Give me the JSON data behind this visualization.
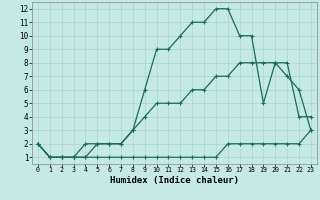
{
  "xlabel": "Humidex (Indice chaleur)",
  "xlim": [
    -0.5,
    23.5
  ],
  "ylim": [
    0.5,
    12.5
  ],
  "xticks": [
    0,
    1,
    2,
    3,
    4,
    5,
    6,
    7,
    8,
    9,
    10,
    11,
    12,
    13,
    14,
    15,
    16,
    17,
    18,
    19,
    20,
    21,
    22,
    23
  ],
  "yticks": [
    1,
    2,
    3,
    4,
    5,
    6,
    7,
    8,
    9,
    10,
    11,
    12
  ],
  "bg_color": "#c5eae6",
  "grid_color": "#acd4cf",
  "line_color": "#1a6b5a",
  "line1_x": [
    0,
    1,
    2,
    3,
    4,
    5,
    6,
    7,
    8,
    9,
    10,
    11,
    12,
    13,
    14,
    15,
    16,
    17,
    18,
    19,
    20,
    21,
    22,
    23
  ],
  "line1_y": [
    2,
    1,
    1,
    1,
    1,
    1,
    1,
    1,
    1,
    1,
    1,
    1,
    1,
    1,
    1,
    1,
    2,
    2,
    2,
    2,
    2,
    2,
    2,
    3
  ],
  "line2_x": [
    0,
    1,
    2,
    3,
    4,
    5,
    6,
    7,
    8,
    9,
    10,
    11,
    12,
    13,
    14,
    15,
    16,
    17,
    18,
    19,
    20,
    21,
    22,
    23
  ],
  "line2_y": [
    2,
    1,
    1,
    1,
    1,
    2,
    2,
    2,
    3,
    4,
    5,
    5,
    5,
    6,
    6,
    7,
    7,
    8,
    8,
    8,
    8,
    7,
    6,
    3
  ],
  "line3_x": [
    0,
    1,
    2,
    3,
    4,
    5,
    6,
    7,
    8,
    9,
    10,
    11,
    12,
    13,
    14,
    15,
    16,
    17,
    18,
    19,
    20,
    21,
    22,
    23
  ],
  "line3_y": [
    2,
    1,
    1,
    1,
    2,
    2,
    2,
    2,
    3,
    6,
    9,
    9,
    10,
    11,
    11,
    12,
    12,
    10,
    10,
    5,
    8,
    8,
    4,
    4
  ]
}
